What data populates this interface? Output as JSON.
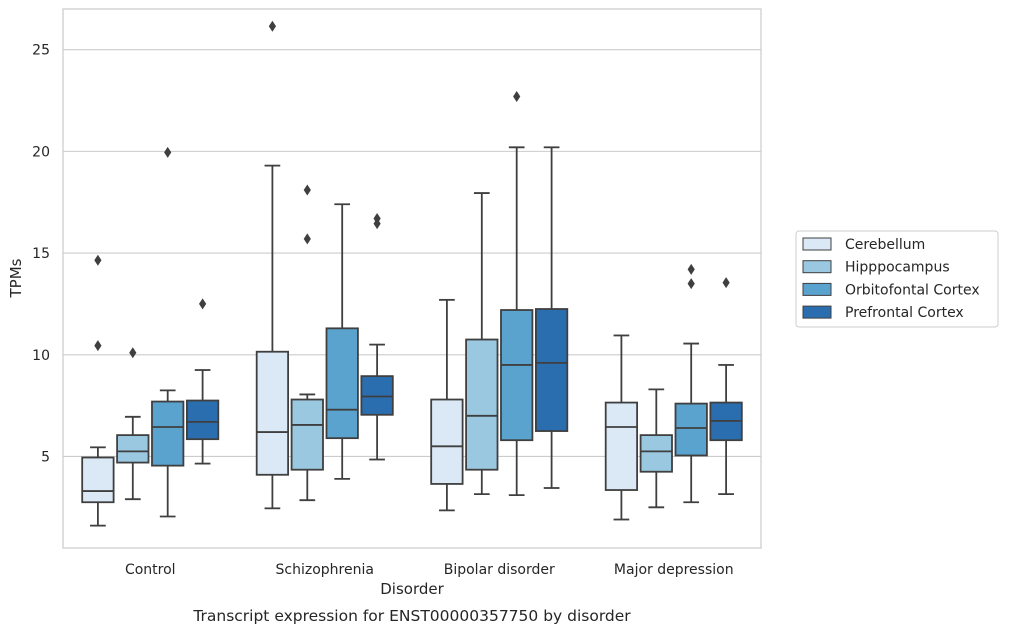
{
  "caption": "Transcript expression for ENST00000357750 by disorder",
  "chart_data": {
    "type": "boxplot",
    "xlabel": "Disorder",
    "ylabel": "TPMs",
    "ylim": [
      0.5,
      27.0
    ],
    "yticks": [
      5,
      10,
      15,
      20,
      25
    ],
    "grid": "horizontal",
    "legend_position": "right",
    "categories": [
      "Control",
      "Schizophrenia",
      "Bipolar disorder",
      "Major depression"
    ],
    "series": [
      {
        "name": "Cerebellum",
        "color": "#dbe9f6",
        "boxes": [
          {
            "whislo": 1.6,
            "q1": 2.75,
            "med": 3.3,
            "q3": 4.95,
            "whishi": 5.45,
            "fliers": [
              10.45,
              14.65
            ]
          },
          {
            "whislo": 2.45,
            "q1": 4.1,
            "med": 6.2,
            "q3": 10.15,
            "whishi": 19.3,
            "fliers": [
              26.15
            ]
          },
          {
            "whislo": 2.35,
            "q1": 3.65,
            "med": 5.5,
            "q3": 7.8,
            "whishi": 12.7,
            "fliers": []
          },
          {
            "whislo": 1.9,
            "q1": 3.35,
            "med": 6.45,
            "q3": 7.65,
            "whishi": 10.95,
            "fliers": []
          }
        ]
      },
      {
        "name": "Hipppocampus",
        "color": "#9ac8e0",
        "boxes": [
          {
            "whislo": 2.9,
            "q1": 4.7,
            "med": 5.25,
            "q3": 6.05,
            "whishi": 6.95,
            "fliers": [
              10.1
            ]
          },
          {
            "whislo": 2.85,
            "q1": 4.35,
            "med": 6.55,
            "q3": 7.8,
            "whishi": 8.05,
            "fliers": [
              15.7,
              18.1
            ]
          },
          {
            "whislo": 3.15,
            "q1": 4.35,
            "med": 7.0,
            "q3": 10.75,
            "whishi": 17.95,
            "fliers": []
          },
          {
            "whislo": 2.5,
            "q1": 4.25,
            "med": 5.25,
            "q3": 6.05,
            "whishi": 8.3,
            "fliers": []
          }
        ]
      },
      {
        "name": "Orbitofontal Cortex",
        "color": "#5ba3cf",
        "boxes": [
          {
            "whislo": 2.05,
            "q1": 4.55,
            "med": 6.45,
            "q3": 7.7,
            "whishi": 8.25,
            "fliers": [
              19.95
            ]
          },
          {
            "whislo": 3.9,
            "q1": 5.9,
            "med": 7.3,
            "q3": 11.3,
            "whishi": 17.4,
            "fliers": []
          },
          {
            "whislo": 3.1,
            "q1": 5.8,
            "med": 9.5,
            "q3": 12.2,
            "whishi": 20.2,
            "fliers": [
              22.7
            ]
          },
          {
            "whislo": 2.75,
            "q1": 5.05,
            "med": 6.4,
            "q3": 7.6,
            "whishi": 10.55,
            "fliers": [
              13.5,
              14.2
            ]
          }
        ]
      },
      {
        "name": "Prefrontal Cortex",
        "color": "#2a6eb0",
        "boxes": [
          {
            "whislo": 4.65,
            "q1": 5.85,
            "med": 6.7,
            "q3": 7.75,
            "whishi": 9.25,
            "fliers": [
              12.5
            ]
          },
          {
            "whislo": 4.85,
            "q1": 7.05,
            "med": 7.95,
            "q3": 8.95,
            "whishi": 10.5,
            "fliers": [
              16.45,
              16.7
            ]
          },
          {
            "whislo": 3.45,
            "q1": 6.25,
            "med": 9.6,
            "q3": 12.25,
            "whishi": 20.2,
            "fliers": []
          },
          {
            "whislo": 3.15,
            "q1": 5.8,
            "med": 6.75,
            "q3": 7.65,
            "whishi": 9.5,
            "fliers": [
              13.55
            ]
          }
        ]
      }
    ]
  }
}
